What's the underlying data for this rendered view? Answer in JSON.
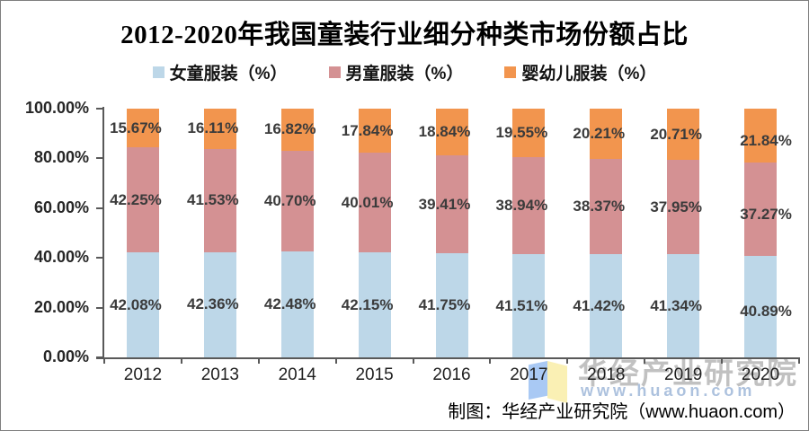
{
  "title": "2012-2020年我国童装行业细分种类市场份额占比",
  "legend": [
    {
      "label": "女童服装（%）",
      "color": "#BDD7E8"
    },
    {
      "label": "男童服装（%）",
      "color": "#D49193"
    },
    {
      "label": "婴幼儿服装（%）",
      "color": "#F2954E"
    }
  ],
  "chart_data": {
    "type": "bar",
    "stacked": true,
    "percent_stack": true,
    "title": "2012-2020年我国童装行业细分种类市场份额占比",
    "categories": [
      "2012",
      "2013",
      "2014",
      "2015",
      "2016",
      "2017",
      "2018",
      "2019",
      "2020"
    ],
    "series": [
      {
        "name": "女童服装（%）",
        "color": "#BDD7E8",
        "values": [
          42.08,
          42.36,
          42.48,
          42.15,
          41.75,
          41.51,
          41.42,
          41.34,
          40.89
        ]
      },
      {
        "name": "男童服装（%）",
        "color": "#D49193",
        "values": [
          42.25,
          41.53,
          40.7,
          40.01,
          39.41,
          38.94,
          38.37,
          37.95,
          37.27
        ]
      },
      {
        "name": "婴幼儿服装（%）",
        "color": "#F2954E",
        "values": [
          15.67,
          16.11,
          16.82,
          17.84,
          18.84,
          19.55,
          20.21,
          20.71,
          21.84
        ]
      }
    ],
    "xlabel": "",
    "ylabel": "",
    "ylim": [
      0,
      100
    ],
    "yticks": [
      "100.00%",
      "80.00%",
      "60.00%",
      "40.00%",
      "20.00%",
      "0.00%"
    ],
    "grid": false,
    "legend_position": "top",
    "data_labels": true
  },
  "watermark": {
    "brand": "华经产业研究院",
    "site": "www.huaon.com"
  },
  "footer": {
    "credit": "制图：华经产业研究院（www.huaon.com）"
  },
  "colors": {
    "axis": "#595959",
    "bar_label_text": "#3b3b3b",
    "tick_text": "#262626",
    "watermark_brand": "#8f8f8f",
    "watermark_site": "#a9bfdd",
    "logo_left": "#a9c9f4",
    "logo_right": "#faf0b4"
  }
}
